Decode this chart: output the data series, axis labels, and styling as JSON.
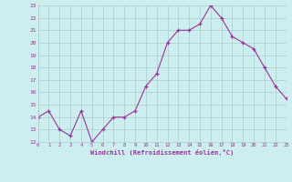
{
  "x": [
    0,
    1,
    2,
    3,
    4,
    5,
    6,
    7,
    8,
    9,
    10,
    11,
    12,
    13,
    14,
    15,
    16,
    17,
    18,
    19,
    20,
    21,
    22,
    23
  ],
  "y": [
    14,
    14.5,
    13,
    12.5,
    14.5,
    12,
    13,
    14,
    14,
    14.5,
    16.5,
    17.5,
    20,
    21,
    21,
    21.5,
    23,
    22,
    20.5,
    20,
    19.5,
    18,
    16.5,
    15.5
  ],
  "line_color": "#993399",
  "marker": "+",
  "marker_color": "#993399",
  "bg_color": "#cceeee",
  "grid_color": "#aacccc",
  "xlabel": "Windchill (Refroidissement éolien,°C)",
  "xlabel_color": "#993399",
  "tick_color": "#993399",
  "ylim": [
    12,
    23
  ],
  "xlim": [
    0,
    23
  ],
  "yticks": [
    12,
    13,
    14,
    15,
    16,
    17,
    18,
    19,
    20,
    21,
    22,
    23
  ],
  "xticks": [
    0,
    1,
    2,
    3,
    4,
    5,
    6,
    7,
    8,
    9,
    10,
    11,
    12,
    13,
    14,
    15,
    16,
    17,
    18,
    19,
    20,
    21,
    22,
    23
  ]
}
